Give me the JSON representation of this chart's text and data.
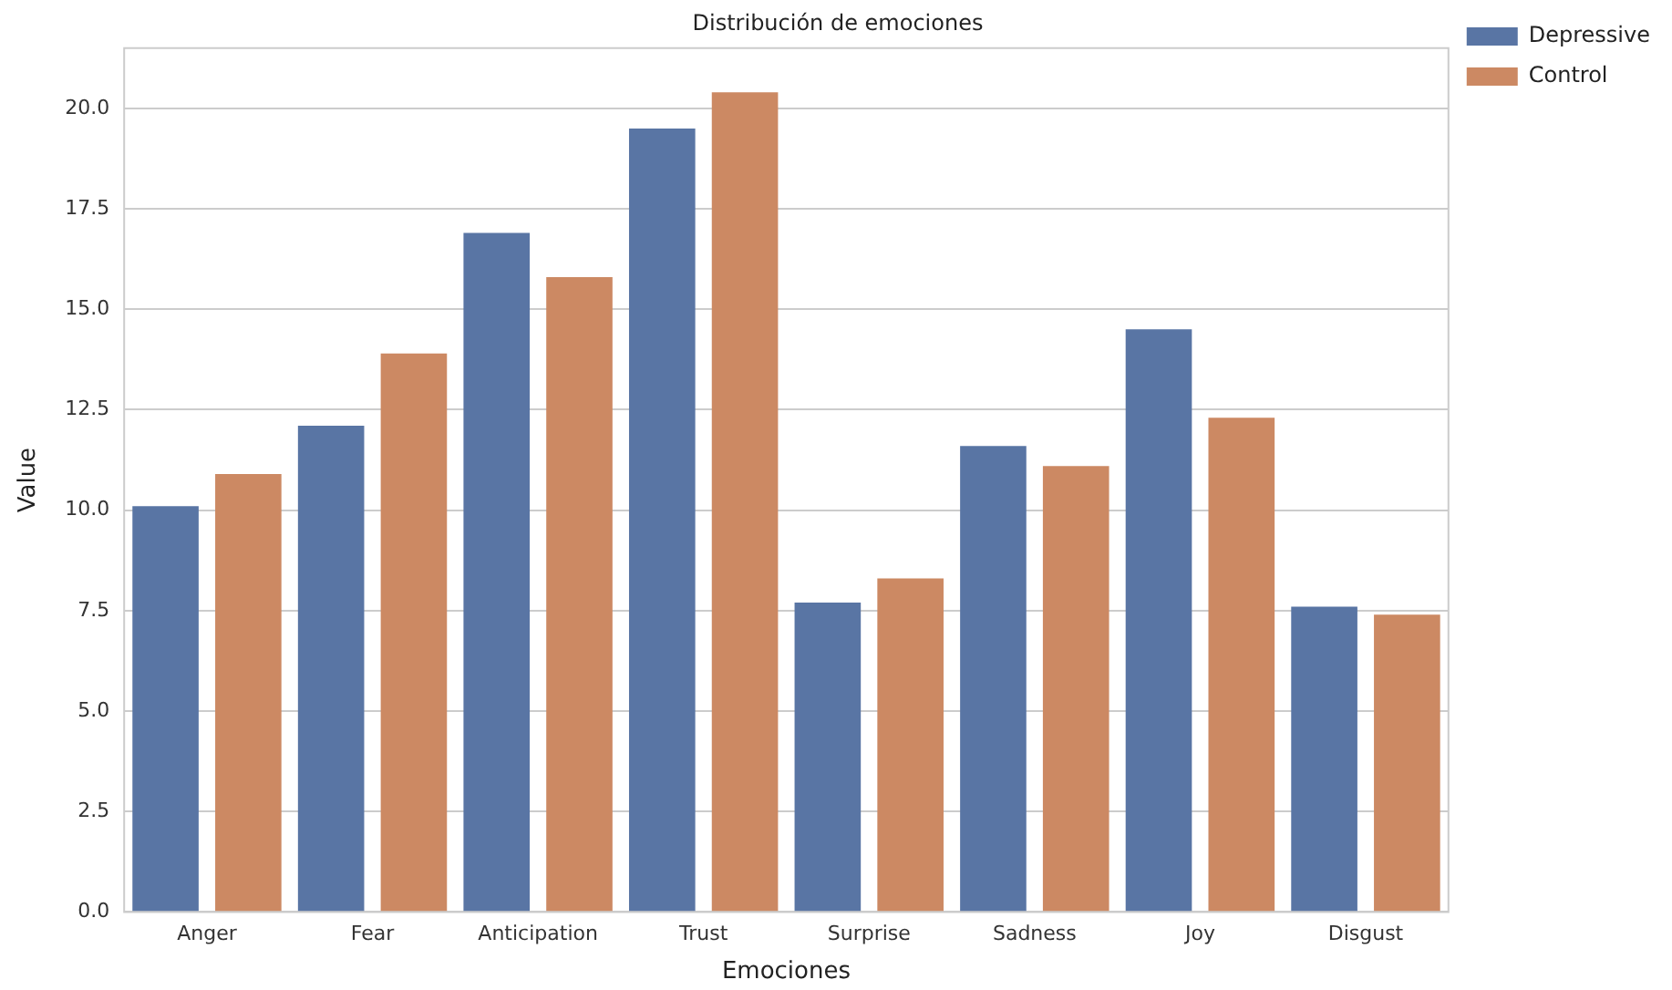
{
  "chart_data": {
    "type": "bar",
    "title": "Distribución de emociones",
    "xlabel": "Emociones",
    "ylabel": "Value",
    "categories": [
      "Anger",
      "Fear",
      "Anticipation",
      "Trust",
      "Surprise",
      "Sadness",
      "Joy",
      "Disgust"
    ],
    "series": [
      {
        "name": "Depressive",
        "color": "#5975a4",
        "values": [
          10.1,
          12.1,
          16.9,
          19.5,
          7.7,
          11.6,
          14.5,
          7.6
        ]
      },
      {
        "name": "Control",
        "color": "#cc8963",
        "values": [
          10.9,
          13.9,
          15.8,
          20.4,
          8.3,
          11.1,
          12.3,
          7.4
        ]
      }
    ],
    "ylim": [
      0,
      21.5
    ],
    "yticks": [
      {
        "value": 0,
        "label": "0.0"
      },
      {
        "value": 2.5,
        "label": "2.5"
      },
      {
        "value": 5,
        "label": "5.0"
      },
      {
        "value": 7.5,
        "label": "7.5"
      },
      {
        "value": 10,
        "label": "10.0"
      },
      {
        "value": 12.5,
        "label": "12.5"
      },
      {
        "value": 15,
        "label": "15.0"
      },
      {
        "value": 17.5,
        "label": "17.5"
      },
      {
        "value": 20,
        "label": "20.0"
      }
    ],
    "grid": "y",
    "legend": "top right"
  }
}
